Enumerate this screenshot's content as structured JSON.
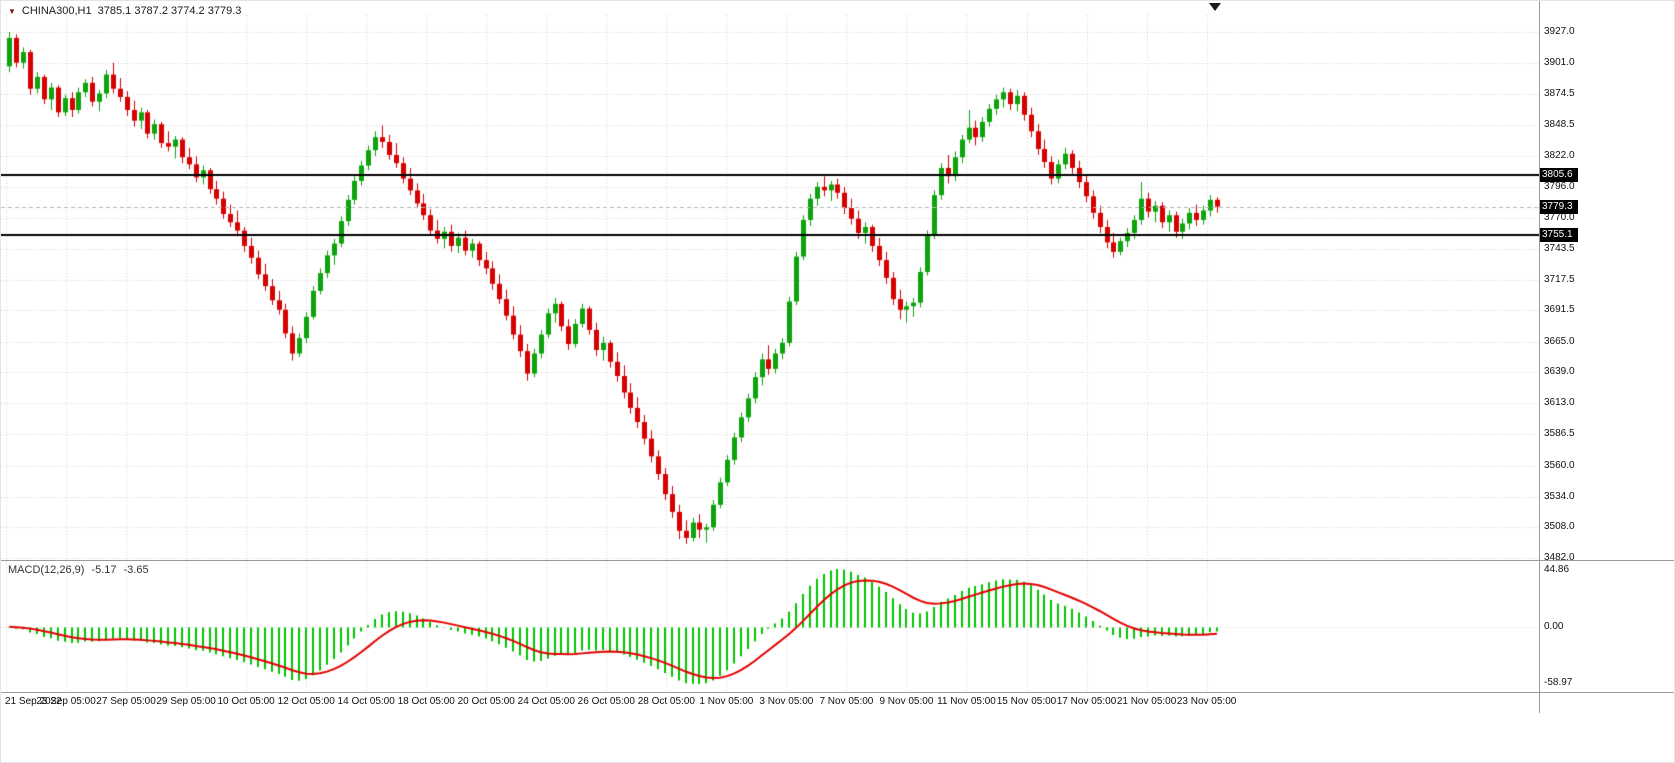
{
  "title_bar": {
    "symbol": "CHINA300,H1",
    "quote": "3785.1 3787.2 3774.2 3779.3"
  },
  "price_axis": {
    "ticks": [
      "3927.0",
      "3901.0",
      "3874.5",
      "3848.5",
      "3822.0",
      "3796.0",
      "3770.0",
      "3743.5",
      "3717.5",
      "3691.5",
      "3665.0",
      "3639.0",
      "3613.0",
      "3586.5",
      "3560.0",
      "3534.0",
      "3508.0",
      "3482.0"
    ],
    "badges": [
      {
        "label": "3805.6",
        "price": 3805.6
      },
      {
        "label": "3779.3",
        "price": 3779.3
      },
      {
        "label": "3755.1",
        "price": 3755.1
      }
    ]
  },
  "macd": {
    "label": "MACD(12,26,9)",
    "value": "-5.17",
    "signal_value": "-3.65",
    "axis": {
      "top": "44.86",
      "zero": "0.00",
      "bottom": "-58.97"
    }
  },
  "colors": {
    "background": "#ffffff",
    "up": "#0ca30c",
    "down": "#d60000",
    "grid": "#d4d4d4",
    "level_line": "#000000",
    "current_price": "#b4b4b4",
    "macd_hist": "#00c400",
    "macd_signal": "#e30000",
    "badge_bg": "#000000",
    "badge_text": "#ffffff"
  },
  "chart_data": {
    "type": "candlestick",
    "title": "CHINA300,H1",
    "timeframe": "H1",
    "ylim": [
      3482.0,
      3927.0
    ],
    "levels": [
      3805.6,
      3755.1
    ],
    "last_price": 3779.3,
    "x_labels": [
      "21 Sep 2022",
      "23 Sep 05:00",
      "27 Sep 05:00",
      "29 Sep 05:00",
      "10 Oct 05:00",
      "12 Oct 05:00",
      "14 Oct 05:00",
      "18 Oct 05:00",
      "20 Oct 05:00",
      "24 Oct 05:00",
      "26 Oct 05:00",
      "28 Oct 05:00",
      "1 Nov 05:00",
      "3 Nov 05:00",
      "7 Nov 05:00",
      "9 Nov 05:00",
      "11 Nov 05:00",
      "15 Nov 05:00",
      "17 Nov 05:00",
      "21 Nov 05:00",
      "23 Nov 05:00"
    ],
    "ohlc": [
      [
        3898,
        3927,
        3893,
        3922
      ],
      [
        3922,
        3925,
        3897,
        3901
      ],
      [
        3901,
        3914,
        3896,
        3910
      ],
      [
        3910,
        3912,
        3874,
        3879
      ],
      [
        3879,
        3893,
        3875,
        3889
      ],
      [
        3889,
        3891,
        3866,
        3870
      ],
      [
        3870,
        3884,
        3861,
        3880
      ],
      [
        3880,
        3882,
        3855,
        3859
      ],
      [
        3859,
        3874,
        3856,
        3871
      ],
      [
        3871,
        3876,
        3855,
        3861
      ],
      [
        3861,
        3880,
        3858,
        3876
      ],
      [
        3876,
        3887,
        3872,
        3884
      ],
      [
        3884,
        3889,
        3864,
        3868
      ],
      [
        3868,
        3878,
        3860,
        3875
      ],
      [
        3875,
        3895,
        3871,
        3891
      ],
      [
        3891,
        3901,
        3875,
        3879
      ],
      [
        3879,
        3888,
        3868,
        3872
      ],
      [
        3872,
        3877,
        3856,
        3861
      ],
      [
        3861,
        3869,
        3847,
        3852
      ],
      [
        3852,
        3863,
        3845,
        3859
      ],
      [
        3859,
        3861,
        3837,
        3841
      ],
      [
        3841,
        3853,
        3836,
        3849
      ],
      [
        3849,
        3851,
        3829,
        3833
      ],
      [
        3833,
        3843,
        3826,
        3830
      ],
      [
        3830,
        3839,
        3820,
        3836
      ],
      [
        3836,
        3838,
        3816,
        3821
      ],
      [
        3821,
        3829,
        3811,
        3815
      ],
      [
        3815,
        3822,
        3800,
        3804
      ],
      [
        3804,
        3814,
        3798,
        3810
      ],
      [
        3810,
        3812,
        3790,
        3794
      ],
      [
        3794,
        3801,
        3781,
        3786
      ],
      [
        3786,
        3792,
        3769,
        3773
      ],
      [
        3773,
        3781,
        3762,
        3766
      ],
      [
        3766,
        3776,
        3754,
        3759
      ],
      [
        3759,
        3762,
        3741,
        3746
      ],
      [
        3746,
        3753,
        3731,
        3736
      ],
      [
        3736,
        3742,
        3718,
        3722
      ],
      [
        3722,
        3731,
        3708,
        3712
      ],
      [
        3712,
        3718,
        3696,
        3700
      ],
      [
        3700,
        3708,
        3688,
        3692
      ],
      [
        3692,
        3697,
        3668,
        3672
      ],
      [
        3672,
        3678,
        3649,
        3655
      ],
      [
        3655,
        3672,
        3652,
        3668
      ],
      [
        3668,
        3690,
        3664,
        3686
      ],
      [
        3686,
        3712,
        3684,
        3708
      ],
      [
        3708,
        3727,
        3705,
        3723
      ],
      [
        3723,
        3742,
        3719,
        3738
      ],
      [
        3738,
        3752,
        3730,
        3748
      ],
      [
        3748,
        3771,
        3745,
        3767
      ],
      [
        3767,
        3789,
        3763,
        3785
      ],
      [
        3785,
        3805,
        3781,
        3801
      ],
      [
        3801,
        3818,
        3797,
        3814
      ],
      [
        3814,
        3831,
        3810,
        3827
      ],
      [
        3827,
        3843,
        3822,
        3838
      ],
      [
        3838,
        3848,
        3829,
        3834
      ],
      [
        3834,
        3840,
        3819,
        3823
      ],
      [
        3823,
        3833,
        3812,
        3816
      ],
      [
        3816,
        3821,
        3799,
        3803
      ],
      [
        3803,
        3812,
        3789,
        3793
      ],
      [
        3793,
        3799,
        3778,
        3782
      ],
      [
        3782,
        3790,
        3768,
        3772
      ],
      [
        3772,
        3777,
        3755,
        3759
      ],
      [
        3759,
        3768,
        3748,
        3752
      ],
      [
        3752,
        3762,
        3744,
        3758
      ],
      [
        3758,
        3764,
        3741,
        3746
      ],
      [
        3746,
        3757,
        3740,
        3753
      ],
      [
        3753,
        3759,
        3738,
        3742
      ],
      [
        3742,
        3752,
        3736,
        3748
      ],
      [
        3748,
        3750,
        3729,
        3734
      ],
      [
        3734,
        3741,
        3722,
        3727
      ],
      [
        3727,
        3733,
        3709,
        3714
      ],
      [
        3714,
        3722,
        3697,
        3701
      ],
      [
        3701,
        3709,
        3683,
        3687
      ],
      [
        3687,
        3695,
        3667,
        3671
      ],
      [
        3671,
        3679,
        3652,
        3657
      ],
      [
        3657,
        3663,
        3632,
        3638
      ],
      [
        3638,
        3659,
        3635,
        3655
      ],
      [
        3655,
        3675,
        3651,
        3671
      ],
      [
        3671,
        3693,
        3668,
        3689
      ],
      [
        3689,
        3702,
        3681,
        3697
      ],
      [
        3697,
        3699,
        3674,
        3678
      ],
      [
        3678,
        3684,
        3658,
        3663
      ],
      [
        3663,
        3684,
        3660,
        3680
      ],
      [
        3680,
        3697,
        3677,
        3693
      ],
      [
        3693,
        3695,
        3671,
        3675
      ],
      [
        3675,
        3681,
        3653,
        3658
      ],
      [
        3658,
        3669,
        3649,
        3664
      ],
      [
        3664,
        3666,
        3643,
        3648
      ],
      [
        3648,
        3656,
        3631,
        3636
      ],
      [
        3636,
        3645,
        3617,
        3622
      ],
      [
        3622,
        3630,
        3604,
        3609
      ],
      [
        3609,
        3618,
        3592,
        3597
      ],
      [
        3597,
        3603,
        3578,
        3583
      ],
      [
        3583,
        3590,
        3563,
        3568
      ],
      [
        3568,
        3573,
        3548,
        3553
      ],
      [
        3553,
        3558,
        3531,
        3536
      ],
      [
        3536,
        3543,
        3516,
        3521
      ],
      [
        3521,
        3527,
        3498,
        3505
      ],
      [
        3505,
        3514,
        3494,
        3499
      ],
      [
        3499,
        3516,
        3496,
        3512
      ],
      [
        3512,
        3519,
        3499,
        3506
      ],
      [
        3506,
        3511,
        3495,
        3508
      ],
      [
        3508,
        3531,
        3505,
        3527
      ],
      [
        3527,
        3550,
        3524,
        3546
      ],
      [
        3546,
        3569,
        3543,
        3565
      ],
      [
        3565,
        3588,
        3561,
        3584
      ],
      [
        3584,
        3605,
        3580,
        3601
      ],
      [
        3601,
        3621,
        3597,
        3617
      ],
      [
        3617,
        3639,
        3613,
        3635
      ],
      [
        3635,
        3655,
        3628,
        3650
      ],
      [
        3650,
        3662,
        3637,
        3642
      ],
      [
        3642,
        3659,
        3638,
        3655
      ],
      [
        3655,
        3668,
        3650,
        3664
      ],
      [
        3664,
        3703,
        3661,
        3699
      ],
      [
        3699,
        3741,
        3696,
        3737
      ],
      [
        3737,
        3772,
        3734,
        3768
      ],
      [
        3768,
        3790,
        3763,
        3786
      ],
      [
        3786,
        3800,
        3780,
        3796
      ],
      [
        3796,
        3805,
        3788,
        3793
      ],
      [
        3793,
        3801,
        3784,
        3798
      ],
      [
        3798,
        3803,
        3786,
        3791
      ],
      [
        3791,
        3796,
        3773,
        3778
      ],
      [
        3778,
        3786,
        3764,
        3769
      ],
      [
        3769,
        3776,
        3752,
        3757
      ],
      [
        3757,
        3766,
        3748,
        3762
      ],
      [
        3762,
        3764,
        3741,
        3746
      ],
      [
        3746,
        3753,
        3729,
        3734
      ],
      [
        3734,
        3741,
        3714,
        3719
      ],
      [
        3719,
        3724,
        3696,
        3701
      ],
      [
        3701,
        3709,
        3684,
        3692
      ],
      [
        3692,
        3699,
        3681,
        3695
      ],
      [
        3695,
        3702,
        3686,
        3698
      ],
      [
        3698,
        3728,
        3694,
        3724
      ],
      [
        3724,
        3759,
        3721,
        3755
      ],
      [
        3755,
        3793,
        3752,
        3789
      ],
      [
        3789,
        3816,
        3785,
        3812
      ],
      [
        3812,
        3823,
        3799,
        3805
      ],
      [
        3805,
        3826,
        3801,
        3821
      ],
      [
        3821,
        3840,
        3816,
        3836
      ],
      [
        3836,
        3861,
        3833,
        3846
      ],
      [
        3846,
        3852,
        3831,
        3838
      ],
      [
        3838,
        3855,
        3834,
        3851
      ],
      [
        3851,
        3866,
        3847,
        3862
      ],
      [
        3862,
        3874,
        3857,
        3870
      ],
      [
        3870,
        3880,
        3863,
        3876
      ],
      [
        3876,
        3879,
        3861,
        3866
      ],
      [
        3866,
        3878,
        3860,
        3873
      ],
      [
        3873,
        3876,
        3852,
        3857
      ],
      [
        3857,
        3863,
        3838,
        3843
      ],
      [
        3843,
        3849,
        3823,
        3828
      ],
      [
        3828,
        3836,
        3812,
        3817
      ],
      [
        3817,
        3822,
        3798,
        3803
      ],
      [
        3803,
        3819,
        3799,
        3815
      ],
      [
        3815,
        3829,
        3811,
        3824
      ],
      [
        3824,
        3827,
        3807,
        3812
      ],
      [
        3812,
        3818,
        3795,
        3800
      ],
      [
        3800,
        3806,
        3783,
        3788
      ],
      [
        3788,
        3793,
        3769,
        3774
      ],
      [
        3774,
        3780,
        3757,
        3762
      ],
      [
        3762,
        3768,
        3744,
        3749
      ],
      [
        3749,
        3757,
        3736,
        3741
      ],
      [
        3741,
        3753,
        3738,
        3750
      ],
      [
        3750,
        3761,
        3745,
        3757
      ],
      [
        3757,
        3772,
        3752,
        3768
      ],
      [
        3768,
        3800,
        3764,
        3786
      ],
      [
        3786,
        3791,
        3770,
        3775
      ],
      [
        3775,
        3784,
        3766,
        3780
      ],
      [
        3780,
        3783,
        3761,
        3766
      ],
      [
        3766,
        3776,
        3758,
        3772
      ],
      [
        3772,
        3775,
        3753,
        3758
      ],
      [
        3758,
        3769,
        3752,
        3765
      ],
      [
        3765,
        3778,
        3760,
        3774
      ],
      [
        3774,
        3781,
        3763,
        3768
      ],
      [
        3768,
        3780,
        3764,
        3776
      ],
      [
        3776,
        3789,
        3771,
        3785
      ],
      [
        3785.1,
        3787.2,
        3774.2,
        3779.3
      ]
    ],
    "indicator": {
      "type": "macd",
      "params": [
        12,
        26,
        9
      ],
      "last_values": [
        -5.17,
        -3.65
      ],
      "axis_range": [
        -58.97,
        44.86
      ]
    }
  }
}
